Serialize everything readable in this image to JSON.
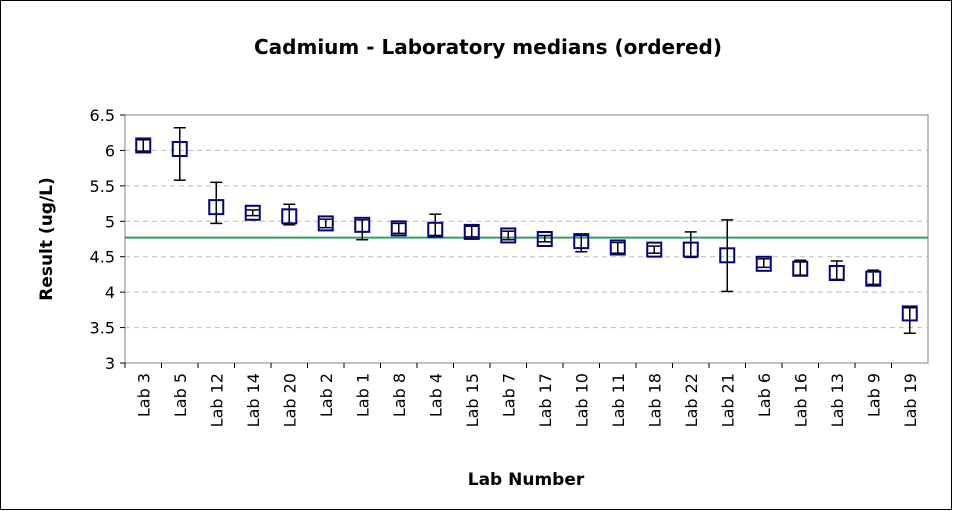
{
  "chart_data": {
    "type": "errorbar",
    "title": "Cadmium - Laboratory medians (ordered)",
    "xlabel": "Lab Number",
    "ylabel": "Result (ug/L)",
    "categories": [
      "Lab 3",
      "Lab 5",
      "Lab 12",
      "Lab 14",
      "Lab 20",
      "Lab 2",
      "Lab 1",
      "Lab 8",
      "Lab 4",
      "Lab 15",
      "Lab 7",
      "Lab 17",
      "Lab 10",
      "Lab 11",
      "Lab 18",
      "Lab 22",
      "Lab 21",
      "Lab 6",
      "Lab 16",
      "Lab 13",
      "Lab 9",
      "Lab 19"
    ],
    "values": [
      6.07,
      6.02,
      5.2,
      5.12,
      5.07,
      4.97,
      4.95,
      4.9,
      4.88,
      4.85,
      4.8,
      4.75,
      4.72,
      4.63,
      4.6,
      4.6,
      4.52,
      4.4,
      4.33,
      4.27,
      4.19,
      3.7
    ],
    "lower": [
      5.99,
      5.58,
      4.97,
      5.08,
      4.95,
      4.91,
      4.74,
      4.83,
      4.8,
      4.78,
      4.74,
      4.71,
      4.57,
      4.55,
      4.55,
      4.49,
      4.01,
      4.35,
      4.24,
      4.18,
      4.11,
      3.42
    ],
    "upper": [
      6.15,
      6.32,
      5.55,
      5.16,
      5.24,
      5.03,
      5.02,
      4.97,
      5.1,
      4.93,
      4.86,
      4.8,
      4.8,
      4.7,
      4.65,
      4.85,
      5.02,
      4.47,
      4.45,
      4.44,
      4.31,
      3.78
    ],
    "reference_line": 4.77,
    "reference_color": "#3a9a6a",
    "color": "#000080",
    "error_color": "#000000",
    "ylim": [
      3,
      6.5
    ],
    "yticks": [
      3,
      3.5,
      4,
      4.5,
      5,
      5.5,
      6,
      6.5
    ],
    "grid": true
  }
}
